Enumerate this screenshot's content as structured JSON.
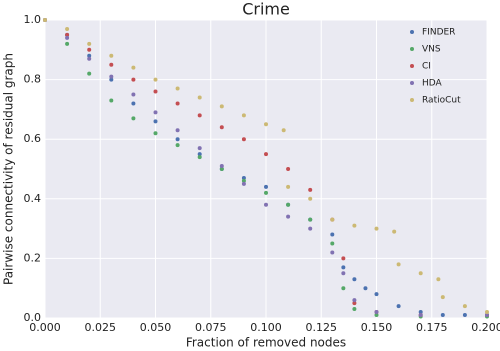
{
  "chart_data": {
    "type": "scatter",
    "title": "Crime",
    "x_label": "Fraction of removed nodes",
    "y_label": "Pairwise connectivity of residual graph",
    "xlim": [
      0,
      0.2
    ],
    "ylim": [
      0,
      1
    ],
    "xticks": [
      {
        "value": 0,
        "label": "0.000"
      },
      {
        "value": 0.025,
        "label": "0.025"
      },
      {
        "value": 0.05,
        "label": "0.050"
      },
      {
        "value": 0.075,
        "label": "0.075"
      },
      {
        "value": 0.1,
        "label": "0.100"
      },
      {
        "value": 0.125,
        "label": "0.125"
      },
      {
        "value": 0.15,
        "label": "0.150"
      },
      {
        "value": 0.175,
        "label": "0.175"
      },
      {
        "value": 0.2,
        "label": "0.200"
      }
    ],
    "yticks": [
      {
        "value": 0,
        "label": "0.0"
      },
      0.2,
      0.4,
      0.6,
      0.8,
      {
        "value": 1,
        "label": "1.0"
      }
    ],
    "grid": true,
    "legend": "upper right",
    "series": [
      {
        "name": "FINDER",
        "color": "#4c72b0",
        "x": [
          0,
          0.01,
          0.02,
          0.03,
          0.04,
          0.05,
          0.06,
          0.07,
          0.08,
          0.09,
          0.1,
          0.11,
          0.12,
          0.13,
          0.135,
          0.14,
          0.145,
          0.15,
          0.16,
          0.17,
          0.18,
          0.19,
          0.2
        ],
        "values": [
          1.0,
          0.95,
          0.88,
          0.8,
          0.72,
          0.66,
          0.6,
          0.55,
          0.5,
          0.47,
          0.44,
          0.38,
          0.33,
          0.28,
          0.17,
          0.13,
          0.1,
          0.08,
          0.04,
          0.02,
          0.01,
          0.01,
          0.01
        ]
      },
      {
        "name": "VNS",
        "color": "#55a868",
        "x": [
          0,
          0.01,
          0.02,
          0.03,
          0.04,
          0.05,
          0.06,
          0.07,
          0.08,
          0.09,
          0.1,
          0.11,
          0.12,
          0.13,
          0.135,
          0.14,
          0.15,
          0.17,
          0.2
        ],
        "values": [
          1.0,
          0.92,
          0.82,
          0.73,
          0.67,
          0.62,
          0.58,
          0.54,
          0.5,
          0.46,
          0.42,
          0.38,
          0.33,
          0.25,
          0.1,
          0.03,
          0.01,
          0.005,
          0.005
        ]
      },
      {
        "name": "CI",
        "color": "#c44e52",
        "x": [
          0,
          0.01,
          0.02,
          0.03,
          0.04,
          0.05,
          0.06,
          0.07,
          0.08,
          0.09,
          0.1,
          0.11,
          0.12,
          0.13,
          0.135,
          0.14,
          0.15,
          0.17,
          0.2
        ],
        "values": [
          1.0,
          0.95,
          0.9,
          0.85,
          0.8,
          0.76,
          0.72,
          0.68,
          0.64,
          0.6,
          0.55,
          0.5,
          0.43,
          0.33,
          0.2,
          0.05,
          0.02,
          0.01,
          0.01
        ]
      },
      {
        "name": "HDA",
        "color": "#8172b2",
        "x": [
          0,
          0.01,
          0.02,
          0.03,
          0.04,
          0.05,
          0.06,
          0.07,
          0.08,
          0.09,
          0.1,
          0.11,
          0.12,
          0.13,
          0.135,
          0.14,
          0.15,
          0.17,
          0.2
        ],
        "values": [
          1.0,
          0.94,
          0.87,
          0.81,
          0.75,
          0.69,
          0.63,
          0.57,
          0.51,
          0.45,
          0.38,
          0.34,
          0.3,
          0.22,
          0.15,
          0.06,
          0.02,
          0.01,
          0.01
        ]
      },
      {
        "name": "RatioCut",
        "color": "#ccb974",
        "x": [
          0,
          0.01,
          0.02,
          0.03,
          0.04,
          0.05,
          0.06,
          0.07,
          0.08,
          0.09,
          0.1,
          0.108,
          0.11,
          0.12,
          0.13,
          0.14,
          0.15,
          0.158,
          0.16,
          0.17,
          0.178,
          0.18,
          0.19,
          0.2
        ],
        "values": [
          1.0,
          0.97,
          0.92,
          0.88,
          0.84,
          0.8,
          0.77,
          0.74,
          0.71,
          0.68,
          0.65,
          0.63,
          0.44,
          0.4,
          0.33,
          0.31,
          0.3,
          0.29,
          0.18,
          0.15,
          0.13,
          0.07,
          0.04,
          0.02
        ]
      }
    ]
  }
}
